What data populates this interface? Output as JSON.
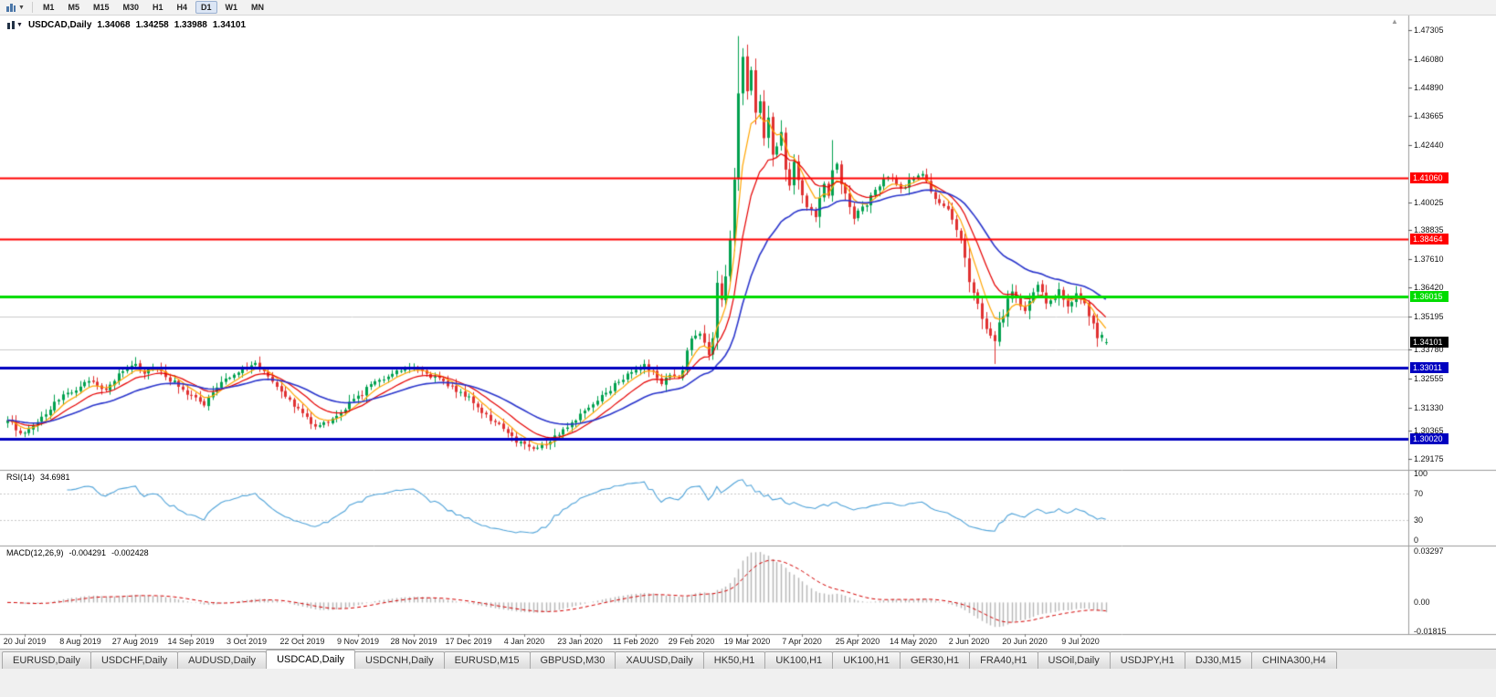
{
  "toolbar": {
    "timeframes": [
      "M1",
      "M5",
      "M15",
      "M30",
      "H1",
      "H4",
      "D1",
      "W1",
      "MN"
    ],
    "active_timeframe": "D1"
  },
  "chart": {
    "title": {
      "symbol": "USDCAD,Daily",
      "open": "1.34068",
      "high": "1.34258",
      "low": "1.33988",
      "close": "1.34101"
    },
    "colors": {
      "background": "#FFFFFF",
      "candle_up": "#00A14E",
      "candle_down": "#E03131",
      "ma_fast": "#FFA500",
      "ma_mid": "#E60000",
      "ma_slow": "#2A35CC",
      "grid_gray": "#CCCCCC",
      "separator": "#9C9C9C",
      "macd_hist": "#B6B6B6",
      "macd_signal": "#D40000",
      "current_tag_bg": "#000000",
      "axis_text": "#141414"
    },
    "scale": {
      "price_min": 1.287,
      "price_max": 1.4792
    },
    "price_axis_ticks": [
      "1.47305",
      "1.46080",
      "1.44890",
      "1.43665",
      "1.42440",
      "1.40025",
      "1.38835",
      "1.37610",
      "1.36420",
      "1.35195",
      "1.33780",
      "1.32555",
      "1.31330",
      "1.30365",
      "1.29175"
    ],
    "current_price": {
      "label": "1.34101",
      "value": 1.34101
    },
    "hlines": [
      {
        "value": 1.4106,
        "label": "1.41060",
        "color": "#FF0000",
        "width": 2
      },
      {
        "value": 1.38464,
        "label": "1.38464",
        "color": "#FF0000",
        "width": 2
      },
      {
        "value": 1.36015,
        "label": "1.36015",
        "color": "#00DC00",
        "width": 3
      },
      {
        "value": 1.33011,
        "label": "1.33011",
        "color": "#0000C0",
        "width": 3
      },
      {
        "value": 1.3002,
        "label": "1.30020",
        "color": "#0000C0",
        "width": 3
      }
    ],
    "gray_lines": [
      1.35195,
      1.3378
    ],
    "date_axis": [
      "20 Jul 2019",
      "8 Aug 2019",
      "27 Aug 2019",
      "14 Sep 2019",
      "3 Oct 2019",
      "22 Oct 2019",
      "9 Nov 2019",
      "28 Nov 2019",
      "17 Dec 2019",
      "4 Jan 2020",
      "23 Jan 2020",
      "11 Feb 2020",
      "29 Feb 2020",
      "19 Mar 2020",
      "7 Apr 2020",
      "25 Apr 2020",
      "14 May 2020",
      "2 Jun 2020",
      "20 Jun 2020",
      "9 Jul 2020"
    ],
    "moving_averages": [
      {
        "period": 6,
        "color_key": "ma_fast",
        "width": 1.2
      },
      {
        "period": 13,
        "color_key": "ma_mid",
        "width": 1.2
      },
      {
        "period": 30,
        "color_key": "ma_slow",
        "width": 1.6
      }
    ],
    "series": {
      "type": "candlestick",
      "bar_count": 258,
      "anchor_closes": [
        [
          0,
          1.308
        ],
        [
          2,
          1.3045
        ],
        [
          4,
          1.302
        ],
        [
          6,
          1.306
        ],
        [
          9,
          1.311
        ],
        [
          12,
          1.316
        ],
        [
          14,
          1.32
        ],
        [
          17,
          1.3215
        ],
        [
          19,
          1.325
        ],
        [
          21,
          1.3235
        ],
        [
          23,
          1.32
        ],
        [
          25,
          1.325
        ],
        [
          27,
          1.329
        ],
        [
          30,
          1.332
        ],
        [
          32,
          1.328
        ],
        [
          34,
          1.331
        ],
        [
          36,
          1.329
        ],
        [
          38,
          1.325
        ],
        [
          40,
          1.323
        ],
        [
          43,
          1.318
        ],
        [
          46,
          1.3145
        ],
        [
          48,
          1.32
        ],
        [
          51,
          1.325
        ],
        [
          53,
          1.328
        ],
        [
          56,
          1.33
        ],
        [
          58,
          1.332
        ],
        [
          60,
          1.329
        ],
        [
          62,
          1.325
        ],
        [
          64,
          1.321
        ],
        [
          66,
          1.316
        ],
        [
          69,
          1.311
        ],
        [
          72,
          1.306
        ],
        [
          75,
          1.307
        ],
        [
          78,
          1.311
        ],
        [
          80,
          1.315
        ],
        [
          82,
          1.318
        ],
        [
          85,
          1.323
        ],
        [
          88,
          1.326
        ],
        [
          91,
          1.329
        ],
        [
          95,
          1.331
        ],
        [
          97,
          1.329
        ],
        [
          100,
          1.326
        ],
        [
          103,
          1.323
        ],
        [
          106,
          1.32
        ],
        [
          108,
          1.317
        ],
        [
          111,
          1.312
        ],
        [
          114,
          1.307
        ],
        [
          117,
          1.302
        ],
        [
          120,
          1.2985
        ],
        [
          123,
          1.2965
        ],
        [
          126,
          1.2975
        ],
        [
          128,
          1.301
        ],
        [
          131,
          1.306
        ],
        [
          134,
          1.31
        ],
        [
          137,
          1.315
        ],
        [
          140,
          1.32
        ],
        [
          143,
          1.325
        ],
        [
          146,
          1.329
        ],
        [
          149,
          1.331
        ],
        [
          151,
          1.328
        ],
        [
          153,
          1.324
        ],
        [
          155,
          1.327
        ],
        [
          157,
          1.325
        ],
        [
          159,
          1.336
        ],
        [
          160,
          1.343
        ],
        [
          162,
          1.3445
        ],
        [
          164,
          1.337
        ],
        [
          165,
          1.342
        ],
        [
          166,
          1.365
        ],
        [
          167,
          1.359
        ],
        [
          168,
          1.368
        ],
        [
          169,
          1.386
        ],
        [
          170,
          1.405
        ],
        [
          171,
          1.448
        ],
        [
          172,
          1.46
        ],
        [
          173,
          1.448
        ],
        [
          174,
          1.456
        ],
        [
          175,
          1.438
        ],
        [
          176,
          1.444
        ],
        [
          177,
          1.428
        ],
        [
          178,
          1.436
        ],
        [
          179,
          1.42
        ],
        [
          181,
          1.43
        ],
        [
          182,
          1.414
        ],
        [
          183,
          1.406
        ],
        [
          184,
          1.418
        ],
        [
          185,
          1.41
        ],
        [
          186,
          1.405
        ],
        [
          187,
          1.399
        ],
        [
          189,
          1.395
        ],
        [
          190,
          1.403
        ],
        [
          191,
          1.409
        ],
        [
          192,
          1.402
        ],
        [
          193,
          1.414
        ],
        [
          194,
          1.417
        ],
        [
          195,
          1.408
        ],
        [
          197,
          1.398
        ],
        [
          198,
          1.394
        ],
        [
          199,
          1.396
        ],
        [
          201,
          1.4
        ],
        [
          203,
          1.405
        ],
        [
          206,
          1.411
        ],
        [
          209,
          1.406
        ],
        [
          212,
          1.4105
        ],
        [
          214,
          1.412
        ],
        [
          216,
          1.405
        ],
        [
          218,
          1.399
        ],
        [
          220,
          1.396
        ],
        [
          222,
          1.39
        ],
        [
          224,
          1.379
        ],
        [
          225,
          1.368
        ],
        [
          226,
          1.362
        ],
        [
          227,
          1.356
        ],
        [
          228,
          1.35
        ],
        [
          229,
          1.345
        ],
        [
          231,
          1.342
        ],
        [
          232,
          1.348
        ],
        [
          233,
          1.353
        ],
        [
          234,
          1.359
        ],
        [
          235,
          1.362
        ],
        [
          236,
          1.36
        ],
        [
          237,
          1.356
        ],
        [
          238,
          1.354
        ],
        [
          240,
          1.362
        ],
        [
          241,
          1.365
        ],
        [
          243,
          1.358
        ],
        [
          245,
          1.36
        ],
        [
          246,
          1.363
        ],
        [
          248,
          1.356
        ],
        [
          250,
          1.361
        ],
        [
          252,
          1.356
        ],
        [
          253,
          1.353
        ],
        [
          254,
          1.348
        ],
        [
          255,
          1.344
        ],
        [
          256,
          1.343
        ],
        [
          257,
          1.34101
        ]
      ],
      "wick_overrides": {
        "4": {
          "low": 1.3016
        },
        "30": {
          "high": 1.3347
        },
        "123": {
          "low": 1.2949
        },
        "166": {
          "high": 1.3712
        },
        "171": {
          "high": 1.4705
        },
        "173": {
          "high": 1.4668
        },
        "181": {
          "high": 1.4349
        },
        "193": {
          "high": 1.4265
        },
        "231": {
          "low": 1.3318
        }
      }
    }
  },
  "rsi": {
    "label": "RSI(14)",
    "value": "34.6981",
    "color": "#4FA3D9",
    "levels": [
      70,
      30
    ],
    "axis_labels": [
      {
        "text": "100",
        "v": 100
      },
      {
        "text": "70",
        "v": 70
      },
      {
        "text": "30",
        "v": 30
      },
      {
        "text": "0",
        "v": 0
      }
    ]
  },
  "macd": {
    "label": "MACD(12,26,9)",
    "value_main": "-0.004291",
    "value_signal": "-0.002428",
    "scale": {
      "min": -0.0185,
      "max": 0.033
    },
    "axis_labels": [
      {
        "text": "0.03297",
        "v": 0.033
      },
      {
        "text": "0.00",
        "v": 0
      },
      {
        "text": "-0.01815",
        "v": -0.0185
      }
    ]
  },
  "tabs": {
    "items": [
      "EURUSD,Daily",
      "USDCHF,Daily",
      "AUDUSD,Daily",
      "USDCAD,Daily",
      "USDCNH,Daily",
      "EURUSD,M15",
      "GBPUSD,M30",
      "XAUUSD,Daily",
      "HK50,H1",
      "UK100,H1",
      "UK100,H1",
      "GER30,H1",
      "FRA40,H1",
      "USOil,Daily",
      "USDJPY,H1",
      "DJ30,M15",
      "CHINA300,H4"
    ],
    "active": "USDCAD,Daily"
  }
}
